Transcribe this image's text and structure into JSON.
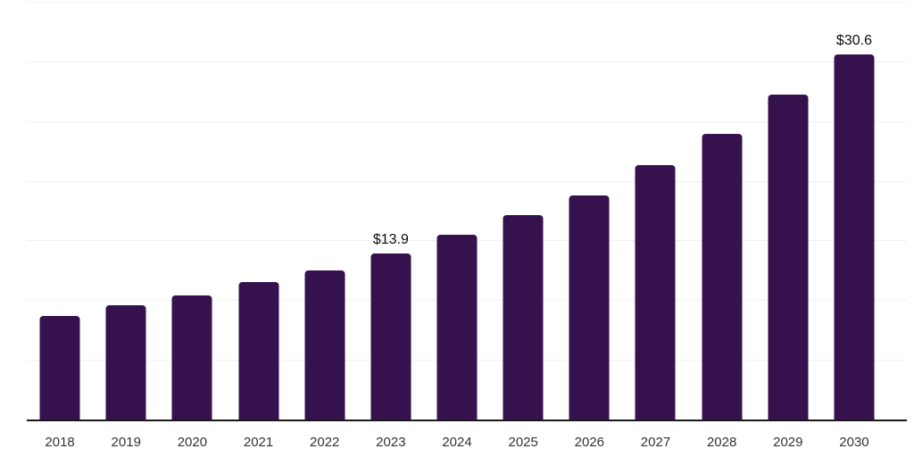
{
  "chart_data": {
    "type": "bar",
    "title": "",
    "xlabel": "",
    "ylabel": "",
    "categories": [
      "2018",
      "2019",
      "2020",
      "2021",
      "2022",
      "2023",
      "2024",
      "2025",
      "2026",
      "2027",
      "2028",
      "2029",
      "2030"
    ],
    "values": [
      8.7,
      9.6,
      10.4,
      11.5,
      12.5,
      13.9,
      15.5,
      17.1,
      18.8,
      21.3,
      23.9,
      27.2,
      30.6
    ],
    "data_labels": [
      {
        "category": "2023",
        "text": "$13.9"
      },
      {
        "category": "2030",
        "text": "$30.6"
      }
    ],
    "ylim": [
      0,
      35
    ],
    "gridline_step": 5,
    "grid": "horizontal",
    "legend": "none",
    "colors": {
      "bar": "#35114D",
      "gridline": "#F1F1F4",
      "axis_line": "#1A1A1A",
      "tick_label": "#333333",
      "value_label": "#0D0D0D",
      "background": "#FFFFFF"
    }
  }
}
